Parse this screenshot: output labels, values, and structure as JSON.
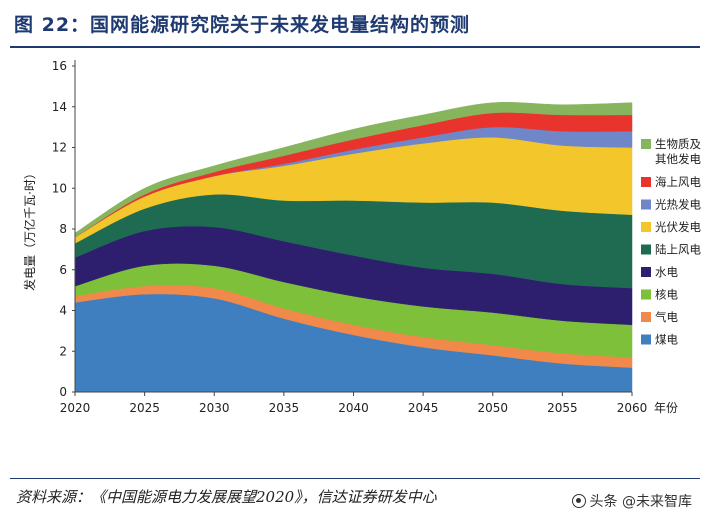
{
  "figure": {
    "title": "图 22：国网能源研究院关于未来发电量结构的预测",
    "source": "资料来源：《中国能源电力发展展望2020》，信达证券研发中心",
    "watermark": "头条 @未来智库"
  },
  "chart_data": {
    "type": "area",
    "stacked": true,
    "x": [
      2020,
      2025,
      2030,
      2035,
      2040,
      2045,
      2050,
      2055,
      2060
    ],
    "x_ticks": [
      "2020",
      "2025",
      "2030",
      "2035",
      "2040",
      "2045",
      "2050",
      "2055",
      "2060"
    ],
    "x_unit": "年份",
    "ylabel": "发电量（万亿千瓦·时）",
    "ylim": [
      0,
      16
    ],
    "y_ticks": [
      0,
      2,
      4,
      6,
      8,
      10,
      12,
      14,
      16
    ],
    "grid": false,
    "legend_position": "right",
    "series": [
      {
        "name": "煤电",
        "color": "#3f7fc0",
        "values": [
          4.4,
          4.8,
          4.6,
          3.6,
          2.8,
          2.2,
          1.8,
          1.4,
          1.2
        ]
      },
      {
        "name": "气电",
        "color": "#f0894a",
        "values": [
          0.3,
          0.4,
          0.5,
          0.5,
          0.5,
          0.5,
          0.5,
          0.5,
          0.5
        ]
      },
      {
        "name": "核电",
        "color": "#7ec03a",
        "values": [
          0.5,
          1.0,
          1.1,
          1.3,
          1.4,
          1.5,
          1.6,
          1.6,
          1.6
        ]
      },
      {
        "name": "水电",
        "color": "#2e1f6e",
        "values": [
          1.4,
          1.7,
          1.9,
          2.0,
          2.0,
          1.9,
          1.9,
          1.8,
          1.8
        ]
      },
      {
        "name": "陆上风电",
        "color": "#1f6b52",
        "values": [
          0.7,
          1.1,
          1.6,
          2.0,
          2.7,
          3.2,
          3.5,
          3.6,
          3.6
        ]
      },
      {
        "name": "光伏发电",
        "color": "#f3c72b",
        "values": [
          0.3,
          0.6,
          0.9,
          1.7,
          2.3,
          2.9,
          3.2,
          3.2,
          3.3
        ]
      },
      {
        "name": "光热发电",
        "color": "#6f86c8",
        "values": [
          0.0,
          0.0,
          0.0,
          0.1,
          0.2,
          0.3,
          0.5,
          0.7,
          0.8
        ]
      },
      {
        "name": "海上风电",
        "color": "#e8342c",
        "values": [
          0.0,
          0.1,
          0.2,
          0.4,
          0.5,
          0.6,
          0.7,
          0.8,
          0.8
        ]
      },
      {
        "name": "生物质及其他发电",
        "color": "#86b55e",
        "values": [
          0.2,
          0.3,
          0.3,
          0.4,
          0.5,
          0.5,
          0.5,
          0.5,
          0.6
        ]
      }
    ]
  }
}
